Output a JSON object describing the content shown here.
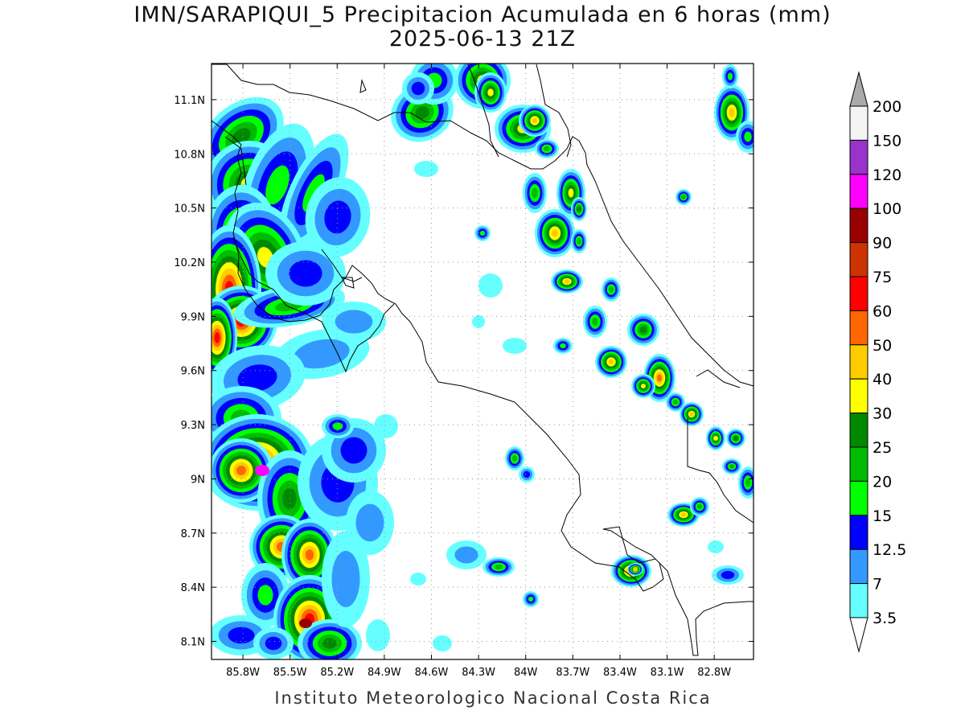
{
  "title_line1": "IMN/SARAPIQUI_5 Precipitacion Acumulada en 6 horas (mm)",
  "title_line2": "2025-06-13 21Z",
  "footer": "Instituto Meteorologico Nacional Costa Rica",
  "lat_labels": [
    "11.1N",
    "10.8N",
    "10.5N",
    "10.2N",
    "9.9N",
    "9.6N",
    "9.3N",
    "9N",
    "8.7N",
    "8.4N",
    "8.1N"
  ],
  "lon_labels": [
    "85.8W",
    "85.5W",
    "85.2W",
    "84.9W",
    "84.6W",
    "84.3W",
    "84W",
    "83.7W",
    "83.4W",
    "83.1W",
    "82.8W"
  ],
  "colorbar": {
    "labels": [
      "200",
      "150",
      "120",
      "100",
      "90",
      "75",
      "60",
      "50",
      "40",
      "30",
      "25",
      "20",
      "15",
      "12.5",
      "7",
      "3.5"
    ],
    "colors": [
      "#f4f4f4",
      "#9933cc",
      "#ff00ff",
      "#990000",
      "#cc3300",
      "#ff0000",
      "#ff6600",
      "#ffcc00",
      "#ffff00",
      "#008800",
      "#00bb00",
      "#00ff00",
      "#0000ff",
      "#3399ff",
      "#66ffff"
    ],
    "over_color": "#aaaaaa",
    "under_color": "#ffffff"
  },
  "map": {
    "lon_range": [
      -86.0,
      -82.55
    ],
    "lat_range": [
      8.0,
      11.3
    ],
    "level_colors": [
      "#66ffff",
      "#3399ff",
      "#0000ff",
      "#00ff00",
      "#00bb00",
      "#008800",
      "#ffff00",
      "#ffcc00",
      "#ff6600",
      "#ff0000",
      "#cc3300"
    ]
  }
}
